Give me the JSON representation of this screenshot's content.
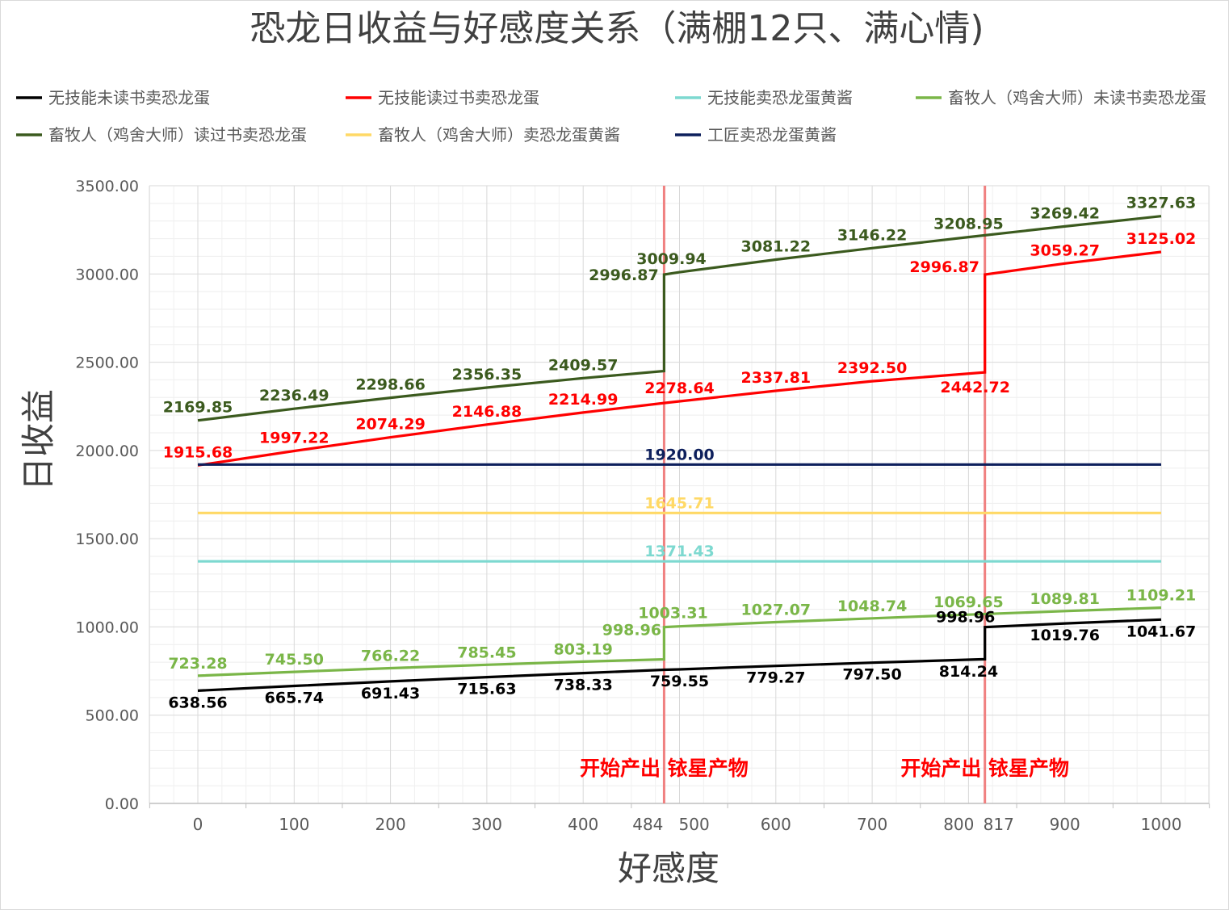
{
  "chart_data": {
    "type": "line",
    "title": "恐龙日收益与好感度关系（满棚12只、满心情)",
    "xlabel": "好感度",
    "ylabel": "日收益",
    "xlim": [
      -50,
      1050
    ],
    "ylim": [
      0,
      3500
    ],
    "grid": true,
    "legend_position": "top",
    "x_ticks": [
      "0",
      "100",
      "200",
      "300",
      "400",
      "484",
      "500",
      "600",
      "700",
      "800",
      "817",
      "900",
      "1000"
    ],
    "y_ticks": [
      "0.00",
      "500.00",
      "1000.00",
      "1500.00",
      "2000.00",
      "2500.00",
      "3000.00",
      "3500.00"
    ],
    "series": [
      {
        "name": "无技能未读书卖恐龙蛋",
        "color": "#000000",
        "points": [
          [
            0,
            638.56
          ],
          [
            100,
            665.74
          ],
          [
            200,
            691.43
          ],
          [
            300,
            715.63
          ],
          [
            400,
            738.33
          ],
          [
            484,
            757.0
          ],
          [
            500,
            759.55
          ],
          [
            600,
            779.27
          ],
          [
            700,
            797.5
          ],
          [
            800,
            814.24
          ],
          [
            817,
            817.0
          ],
          [
            817,
            998.96
          ],
          [
            900,
            1019.76
          ],
          [
            1000,
            1041.67
          ]
        ],
        "labels": [
          {
            "x": 0,
            "y": 638.56,
            "text": "638.56"
          },
          {
            "x": 100,
            "y": 665.74,
            "text": "665.74"
          },
          {
            "x": 200,
            "y": 691.43,
            "text": "691.43"
          },
          {
            "x": 300,
            "y": 715.63,
            "text": "715.63"
          },
          {
            "x": 400,
            "y": 738.33,
            "text": "738.33"
          },
          {
            "x": 500,
            "y": 759.55,
            "text": "759.55"
          },
          {
            "x": 600,
            "y": 779.27,
            "text": "779.27"
          },
          {
            "x": 700,
            "y": 797.5,
            "text": "797.50"
          },
          {
            "x": 800,
            "y": 814.24,
            "text": "814.24"
          },
          {
            "x": 817,
            "y": 998.96,
            "text": "998.96"
          },
          {
            "x": 900,
            "y": 1019.76,
            "text": "1019.76"
          },
          {
            "x": 1000,
            "y": 1041.67,
            "text": "1041.67"
          }
        ]
      },
      {
        "name": "无技能读过书卖恐龙蛋",
        "color": "#ff0000",
        "points": [
          [
            0,
            1915.68
          ],
          [
            100,
            1997.22
          ],
          [
            200,
            2074.29
          ],
          [
            300,
            2146.88
          ],
          [
            400,
            2214.99
          ],
          [
            484,
            2269.0
          ],
          [
            500,
            2278.64
          ],
          [
            600,
            2337.81
          ],
          [
            700,
            2392.5
          ],
          [
            817,
            2442.72
          ],
          [
            817,
            2996.87
          ],
          [
            900,
            3059.27
          ],
          [
            1000,
            3125.02
          ]
        ],
        "labels": [
          {
            "x": 0,
            "y": 1915.68,
            "text": "1915.68"
          },
          {
            "x": 100,
            "y": 1997.22,
            "text": "1997.22"
          },
          {
            "x": 200,
            "y": 2074.29,
            "text": "2074.29"
          },
          {
            "x": 300,
            "y": 2146.88,
            "text": "2146.88"
          },
          {
            "x": 400,
            "y": 2214.99,
            "text": "2214.99"
          },
          {
            "x": 500,
            "y": 2278.64,
            "text": "2278.64"
          },
          {
            "x": 600,
            "y": 2337.81,
            "text": "2337.81"
          },
          {
            "x": 700,
            "y": 2392.5,
            "text": "2392.50"
          },
          {
            "x": 817,
            "y": 2442.72,
            "text": "2442.72"
          },
          {
            "x": 817,
            "y": 2996.87,
            "text": "2996.87"
          },
          {
            "x": 900,
            "y": 3059.27,
            "text": "3059.27"
          },
          {
            "x": 1000,
            "y": 3125.02,
            "text": "3125.02"
          }
        ]
      },
      {
        "name": "无技能卖恐龙蛋黄酱",
        "color": "#7dd9d0",
        "points": [
          [
            0,
            1371.43
          ],
          [
            1000,
            1371.43
          ]
        ],
        "labels": [
          {
            "x": 500,
            "y": 1371.43,
            "text": "1371.43"
          }
        ]
      },
      {
        "name": "畜牧人（鸡舍大师）未读书卖恐龙蛋",
        "color": "#7ab648",
        "points": [
          [
            0,
            723.28
          ],
          [
            100,
            745.5
          ],
          [
            200,
            766.22
          ],
          [
            300,
            785.45
          ],
          [
            400,
            803.19
          ],
          [
            484,
            816.0
          ],
          [
            484,
            998.96
          ],
          [
            500,
            1003.31
          ],
          [
            600,
            1027.07
          ],
          [
            700,
            1048.74
          ],
          [
            800,
            1069.65
          ],
          [
            900,
            1089.81
          ],
          [
            1000,
            1109.21
          ]
        ],
        "labels": [
          {
            "x": 0,
            "y": 723.28,
            "text": "723.28"
          },
          {
            "x": 100,
            "y": 745.5,
            "text": "745.50"
          },
          {
            "x": 200,
            "y": 766.22,
            "text": "766.22"
          },
          {
            "x": 300,
            "y": 785.45,
            "text": "785.45"
          },
          {
            "x": 400,
            "y": 803.19,
            "text": "803.19"
          },
          {
            "x": 484,
            "y": 998.96,
            "text": "998.96"
          },
          {
            "x": 500,
            "y": 1003.31,
            "text": "1003.31"
          },
          {
            "x": 600,
            "y": 1027.07,
            "text": "1027.07"
          },
          {
            "x": 700,
            "y": 1048.74,
            "text": "1048.74"
          },
          {
            "x": 800,
            "y": 1069.65,
            "text": "1069.65"
          },
          {
            "x": 900,
            "y": 1089.81,
            "text": "1089.81"
          },
          {
            "x": 1000,
            "y": 1109.21,
            "text": "1109.21"
          }
        ]
      },
      {
        "name": "畜牧人（鸡舍大师）读过书卖恐龙蛋",
        "color": "#3b5a1e",
        "points": [
          [
            0,
            2169.85
          ],
          [
            100,
            2236.49
          ],
          [
            200,
            2298.66
          ],
          [
            300,
            2356.35
          ],
          [
            400,
            2409.57
          ],
          [
            484,
            2450.0
          ],
          [
            484,
            2996.87
          ],
          [
            500,
            3009.94
          ],
          [
            600,
            3081.22
          ],
          [
            700,
            3146.22
          ],
          [
            800,
            3208.95
          ],
          [
            900,
            3269.42
          ],
          [
            1000,
            3327.63
          ]
        ],
        "labels": [
          {
            "x": 0,
            "y": 2169.85,
            "text": "2169.85"
          },
          {
            "x": 100,
            "y": 2236.49,
            "text": "2236.49"
          },
          {
            "x": 200,
            "y": 2298.66,
            "text": "2298.66"
          },
          {
            "x": 300,
            "y": 2356.35,
            "text": "2356.35"
          },
          {
            "x": 400,
            "y": 2409.57,
            "text": "2409.57"
          },
          {
            "x": 484,
            "y": 2996.87,
            "text": "2996.87"
          },
          {
            "x": 500,
            "y": 3009.94,
            "text": "3009.94"
          },
          {
            "x": 600,
            "y": 3081.22,
            "text": "3081.22"
          },
          {
            "x": 700,
            "y": 3146.22,
            "text": "3146.22"
          },
          {
            "x": 800,
            "y": 3208.95,
            "text": "3208.95"
          },
          {
            "x": 900,
            "y": 3269.42,
            "text": "3269.42"
          },
          {
            "x": 1000,
            "y": 3327.63,
            "text": "3327.63"
          }
        ]
      },
      {
        "name": "畜牧人（鸡舍大师）卖恐龙蛋黄酱",
        "color": "#ffd966",
        "points": [
          [
            0,
            1645.71
          ],
          [
            1000,
            1645.71
          ]
        ],
        "labels": [
          {
            "x": 500,
            "y": 1645.71,
            "text": "1645.71"
          }
        ]
      },
      {
        "name": "工匠卖恐龙蛋黄酱",
        "color": "#0d1f5c",
        "points": [
          [
            0,
            1920.0
          ],
          [
            1000,
            1920.0
          ]
        ],
        "labels": [
          {
            "x": 500,
            "y": 1920.0,
            "text": "1920.00"
          }
        ]
      }
    ],
    "markers": [
      {
        "x": 484,
        "label": "开始产出 铱星产物",
        "color": "#f08080"
      },
      {
        "x": 817,
        "label": "开始产出 铱星产物",
        "color": "#f08080"
      }
    ]
  }
}
